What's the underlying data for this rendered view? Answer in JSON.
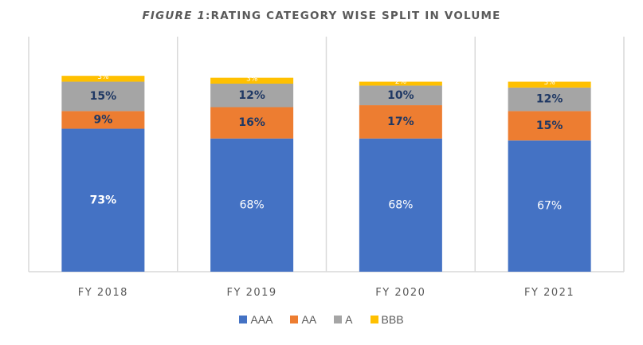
{
  "chart_data": {
    "type": "bar",
    "stacked": true,
    "title_prefix": "FIGURE 1",
    "title_rest": ":RATING CATEGORY WISE SPLIT IN VOLUME",
    "title": "FIGURE 1:RATING CATEGORY WISE SPLIT IN VOLUME",
    "xlabel": "",
    "ylabel": "",
    "categories": [
      "FY 2018",
      "FY 2019",
      "FY 2020",
      "FY 2021"
    ],
    "series": [
      {
        "name": "AAA",
        "color": "#4472C4",
        "values": [
          73,
          68,
          68,
          67
        ],
        "labels": [
          "73%",
          "68%",
          "68%",
          "67%"
        ],
        "label_color": "#FFFFFF",
        "label_bold": [
          true,
          false,
          false,
          false
        ]
      },
      {
        "name": "AA",
        "color": "#ED7D31",
        "values": [
          9,
          16,
          17,
          15
        ],
        "labels": [
          "9%",
          "16%",
          "17%",
          "15%"
        ],
        "label_color": "#1F3864",
        "label_bold": [
          true,
          true,
          true,
          true
        ]
      },
      {
        "name": "A",
        "color": "#A5A5A5",
        "values": [
          15,
          12,
          10,
          12
        ],
        "labels": [
          "15%",
          "12%",
          "10%",
          "12%"
        ],
        "label_color": "#1F3864",
        "label_bold": [
          true,
          true,
          true,
          true
        ]
      },
      {
        "name": "BBB",
        "color": "#FFC000",
        "values": [
          3,
          3,
          2,
          3
        ],
        "labels": [
          "3%",
          "3%",
          "2%",
          "3%"
        ],
        "label_color": "#FFFFFF",
        "label_bold": [
          false,
          false,
          false,
          false
        ]
      }
    ],
    "ylim": [
      0,
      120
    ],
    "y_axis_visible": false,
    "grid": "vertical category separators",
    "legend_position": "bottom"
  }
}
